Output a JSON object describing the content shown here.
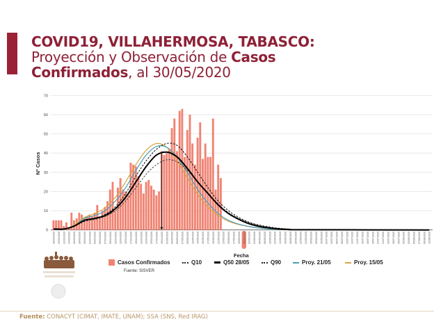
{
  "title": {
    "line1": "COVID19, VILLAHERMOSA, TABASCO:",
    "line2_regular": "Proyección y Observación de ",
    "line2_bold": "Casos",
    "line3_bold": "Confirmados",
    "line3_regular": ", al 30/05/2020"
  },
  "footer": {
    "label": "Fuente:",
    "text": "CONACYT (CIMAT, IMATE, UNAM);   SSA (SNS, Red IRAG)"
  },
  "colors": {
    "brand": "#9b2235",
    "bars": "#f08373",
    "proy_21_05": "#4a9fb4",
    "proy_15_05": "#d9a441",
    "q50": "#000000",
    "quantiles": "#222222",
    "footer": "#b38e5d"
  },
  "logo": {
    "icon": "heroes-of-mexico-logo",
    "seal": "mexico-coat-of-arms-seal"
  },
  "chart_data": {
    "type": "bar+line",
    "xlabel": "Fecha",
    "ylabel": "Nº Casos",
    "ylim": [
      0,
      70
    ],
    "yticks": [
      "0",
      "10",
      "20",
      "30",
      "40",
      "50",
      "60",
      "70"
    ],
    "grid": "horizontal",
    "highlighted_date": "30/05/2020",
    "peak_marker_date": "29/04/2020",
    "x_ticks": [
      "18/03/2020",
      "20/03/2020",
      "22/03/2020",
      "24/03/2020",
      "26/03/2020",
      "28/03/2020",
      "30/03/2020",
      "01/04/2020",
      "03/04/2020",
      "05/04/2020",
      "07/04/2020",
      "09/04/2020",
      "11/04/2020",
      "13/04/2020",
      "15/04/2020",
      "17/04/2020",
      "19/04/2020",
      "21/04/2020",
      "23/04/2020",
      "25/04/2020",
      "27/04/2020",
      "29/04/2020",
      "01/05/2020",
      "03/05/2020",
      "05/05/2020",
      "07/05/2020",
      "09/05/2020",
      "11/05/2020",
      "13/05/2020",
      "15/05/2020",
      "17/05/2020",
      "19/05/2020",
      "21/05/2020",
      "23/05/2020",
      "25/05/2020",
      "27/05/2020",
      "29/05/2020",
      "30/05/2020",
      "02/06/2020",
      "04/06/2020",
      "06/06/2020",
      "08/06/2020",
      "10/06/2020",
      "12/06/2020",
      "14/06/2020",
      "16/06/2020",
      "18/06/2020",
      "20/06/2020",
      "22/06/2020",
      "24/06/2020",
      "26/06/2020",
      "28/06/2020",
      "30/06/2020",
      "02/07/2020",
      "04/07/2020",
      "06/07/2020",
      "08/07/2020",
      "10/07/2020",
      "12/07/2020",
      "14/07/2020",
      "16/07/2020",
      "18/07/2020",
      "20/07/2020",
      "22/07/2020",
      "24/07/2020",
      "26/07/2020",
      "28/07/2020",
      "30/07/2020",
      "01/08/2020",
      "03/08/2020",
      "05/08/2020",
      "07/08/2020",
      "09/08/2020",
      "11/08/2020"
    ],
    "bars": {
      "name": "Casos Confirmados",
      "source": "Fuente: SISVER",
      "dates": [
        "18/03/2020",
        "19/03/2020",
        "20/03/2020",
        "21/03/2020",
        "22/03/2020",
        "23/03/2020",
        "24/03/2020",
        "25/03/2020",
        "26/03/2020",
        "27/03/2020",
        "28/03/2020",
        "29/03/2020",
        "30/03/2020",
        "31/03/2020",
        "01/04/2020",
        "02/04/2020",
        "03/04/2020",
        "04/04/2020",
        "05/04/2020",
        "06/04/2020",
        "07/04/2020",
        "08/04/2020",
        "09/04/2020",
        "10/04/2020",
        "11/04/2020",
        "12/04/2020",
        "13/04/2020",
        "14/04/2020",
        "15/04/2020",
        "16/04/2020",
        "17/04/2020",
        "18/04/2020",
        "19/04/2020",
        "20/04/2020",
        "21/04/2020",
        "22/04/2020",
        "23/04/2020",
        "24/04/2020",
        "25/04/2020",
        "26/04/2020",
        "27/04/2020",
        "28/04/2020",
        "29/04/2020",
        "30/04/2020",
        "01/05/2020",
        "02/05/2020",
        "03/05/2020",
        "04/05/2020",
        "05/05/2020",
        "06/05/2020",
        "07/05/2020",
        "08/05/2020",
        "09/05/2020",
        "10/05/2020",
        "11/05/2020",
        "12/05/2020",
        "13/05/2020",
        "14/05/2020",
        "15/05/2020",
        "16/05/2020",
        "17/05/2020",
        "18/05/2020",
        "19/05/2020",
        "20/05/2020",
        "21/05/2020",
        "22/05/2020"
      ],
      "values": [
        5,
        5,
        5,
        5,
        2,
        4,
        1,
        9,
        5,
        6,
        9,
        8,
        6,
        7,
        8,
        7,
        9,
        13,
        7,
        10,
        12,
        15,
        21,
        25,
        10,
        22,
        27,
        21,
        20,
        19,
        35,
        34,
        33,
        28,
        24,
        19,
        25,
        26,
        23,
        21,
        18,
        20,
        41,
        39,
        40,
        42,
        53,
        58,
        41,
        62,
        63,
        38,
        52,
        60,
        45,
        34,
        48,
        56,
        37,
        45,
        38,
        38,
        58,
        21,
        34,
        27
      ]
    },
    "curve_dates": [
      "18/03/2020",
      "22/03/2020",
      "26/03/2020",
      "30/03/2020",
      "03/04/2020",
      "07/04/2020",
      "11/04/2020",
      "15/04/2020",
      "19/04/2020",
      "23/04/2020",
      "27/04/2020",
      "01/05/2020",
      "05/05/2020",
      "09/05/2020",
      "13/05/2020",
      "17/05/2020",
      "21/05/2020",
      "25/05/2020",
      "29/05/2020",
      "02/06/2020",
      "06/06/2020",
      "10/06/2020",
      "14/06/2020",
      "18/06/2020",
      "22/06/2020",
      "11/08/2020"
    ],
    "series": [
      {
        "name": "Q10",
        "style": "dashed",
        "values": [
          0.5,
          0.5,
          2,
          4.5,
          5.5,
          7,
          10,
          15,
          22,
          29,
          34,
          36.5,
          35.5,
          31,
          25,
          19,
          13.5,
          9,
          6,
          3.8,
          2.3,
          1.3,
          0.7,
          0.35,
          0.15,
          0
        ]
      },
      {
        "name": "Q50 28/05",
        "style": "solid-bold",
        "values": [
          0.5,
          0.5,
          2,
          5,
          6,
          7.5,
          11,
          17,
          25,
          33,
          39,
          40.5,
          38,
          32,
          25,
          19,
          13,
          8.5,
          5.5,
          3.2,
          1.8,
          1,
          0.5,
          0.25,
          0.1,
          0
        ]
      },
      {
        "name": "Q90",
        "style": "dashed",
        "values": [
          0.5,
          0.5,
          2,
          4.5,
          6,
          8,
          12,
          19,
          28,
          36,
          42,
          45,
          44,
          38,
          30,
          22,
          15,
          10,
          6.5,
          4,
          2.5,
          1.5,
          0.8,
          0.4,
          0.2,
          0
        ]
      },
      {
        "name": "Proy. 21/05",
        "style": "solid",
        "values": [
          0.5,
          0.5,
          2,
          6,
          7.5,
          10,
          15,
          22,
          31,
          39,
          43.5,
          43,
          38,
          30,
          21,
          14,
          8.5,
          5,
          3,
          1.8,
          1,
          0.5,
          0.3,
          0.15,
          0.1,
          0
        ]
      },
      {
        "name": "Proy. 15/05",
        "style": "solid",
        "values": [
          0.5,
          0.5,
          2.5,
          6.5,
          8.5,
          11.5,
          17,
          25,
          34,
          41.5,
          45,
          43,
          36,
          27,
          18.5,
          12,
          7.5,
          4.5,
          2.8,
          1.7,
          1,
          0.6,
          0.3,
          0.15,
          0.1,
          0
        ]
      }
    ]
  }
}
